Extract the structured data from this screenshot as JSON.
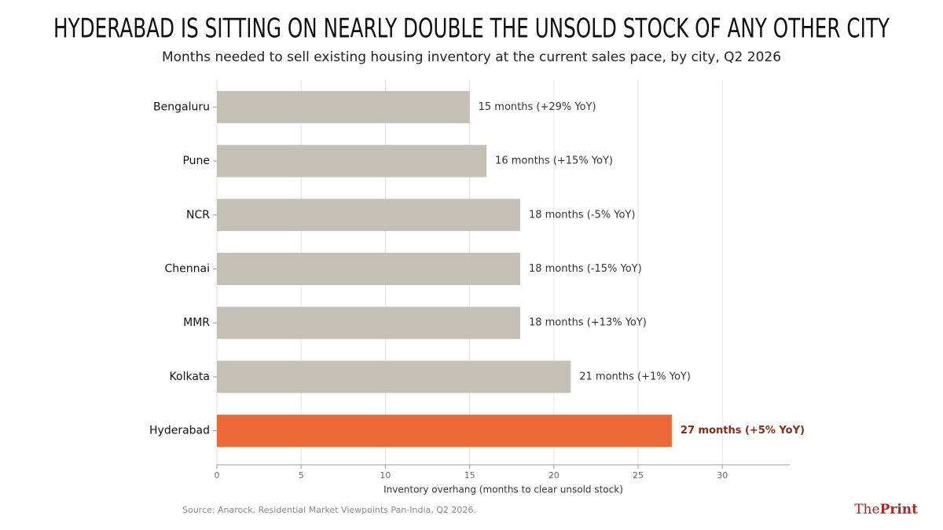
{
  "chart_data": {
    "type": "barh",
    "title": "HYDERABAD IS SITTING ON NEARLY DOUBLE THE UNSOLD STOCK OF ANY OTHER CITY",
    "subtitle": "Months needed to sell existing housing inventory at the current sales pace, by city, Q2 2026",
    "categories": [
      "Bengaluru",
      "Pune",
      "NCR",
      "Chennai",
      "MMR",
      "Kolkata",
      "Hyderabad"
    ],
    "values": [
      15,
      16,
      18,
      18,
      18,
      21,
      27
    ],
    "value_labels": [
      "15 months  (+29% YoY)",
      "16 months  (+15% YoY)",
      "18 months  (-5% YoY)",
      "18 months  (-15% YoY)",
      "18 months  (+13% YoY)",
      "21 months  (+1% YoY)",
      "27 months  (+5% YoY)"
    ],
    "colors": [
      "#c3c0b6",
      "#c3c0b6",
      "#c3c0b6",
      "#c3c0b6",
      "#c3c0b6",
      "#c3c0b6",
      "#ec6836"
    ],
    "label_colors": [
      "#333333",
      "#333333",
      "#333333",
      "#333333",
      "#333333",
      "#333333",
      "#8b2a12"
    ],
    "label_weights": [
      "normal",
      "normal",
      "normal",
      "normal",
      "normal",
      "normal",
      "bold"
    ],
    "xlabel": "Inventory overhang (months to clear unsold stock)",
    "xlim": [
      0,
      34
    ],
    "xticks": [
      0,
      5,
      10,
      15,
      20,
      25,
      30
    ],
    "grid": true,
    "source": "Source: Anarock, Residential Market Viewpoints Pan-India, Q2 2026.",
    "brand_parts": [
      "The",
      "Print"
    ]
  }
}
